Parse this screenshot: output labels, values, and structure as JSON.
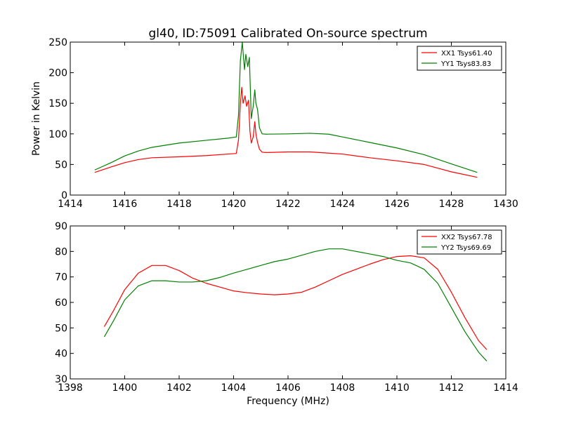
{
  "chart_data": [
    {
      "type": "line",
      "title": "gl40, ID:75091 Calibrated On-source spectrum",
      "xlabel": "",
      "ylabel": "Power in Kelvin",
      "xlim": [
        1414,
        1430
      ],
      "ylim": [
        0,
        250
      ],
      "xticks": [
        1414,
        1416,
        1418,
        1420,
        1422,
        1424,
        1426,
        1428,
        1430
      ],
      "yticks": [
        0,
        50,
        100,
        150,
        200,
        250
      ],
      "grid": false,
      "legend_position": "top-right",
      "series": [
        {
          "name": "XX1 Tsys61.40",
          "color": "#ff0000",
          "x": [
            1414.9,
            1415.5,
            1416.0,
            1416.5,
            1417.0,
            1418.0,
            1419.0,
            1419.8,
            1420.1,
            1420.18,
            1420.25,
            1420.3,
            1420.35,
            1420.42,
            1420.48,
            1420.55,
            1420.6,
            1420.65,
            1420.72,
            1420.78,
            1420.82,
            1420.88,
            1420.95,
            1421.05,
            1421.2,
            1422.0,
            1422.8,
            1423.5,
            1424.0,
            1425.0,
            1426.0,
            1427.0,
            1428.0,
            1428.95
          ],
          "y": [
            37,
            46,
            53,
            58,
            61,
            62.5,
            64.5,
            67,
            68,
            90,
            150,
            176,
            150,
            162,
            145,
            155,
            105,
            85,
            95,
            120,
            100,
            86,
            75,
            70,
            69.5,
            70.5,
            70.5,
            68.5,
            67,
            61,
            56,
            50,
            38,
            29
          ]
        },
        {
          "name": "YY1 Tsys83.83",
          "color": "#008000",
          "x": [
            1414.9,
            1415.5,
            1416.0,
            1416.5,
            1417.0,
            1418.0,
            1419.0,
            1419.8,
            1420.1,
            1420.18,
            1420.25,
            1420.32,
            1420.4,
            1420.45,
            1420.52,
            1420.58,
            1420.65,
            1420.72,
            1420.78,
            1420.82,
            1420.88,
            1420.95,
            1421.05,
            1421.2,
            1422.0,
            1422.8,
            1423.5,
            1424.0,
            1425.0,
            1426.0,
            1427.0,
            1428.0,
            1428.95
          ],
          "y": [
            41,
            53,
            64,
            72,
            78,
            85,
            89.5,
            93,
            95,
            130,
            220,
            250,
            205,
            230,
            210,
            225,
            125,
            145,
            172,
            150,
            140,
            110,
            100,
            99.5,
            100,
            101,
            99.5,
            95,
            86,
            77,
            66,
            51,
            37
          ]
        }
      ]
    },
    {
      "type": "line",
      "title": "",
      "xlabel": "Frequency (MHz)",
      "ylabel": "",
      "xlim": [
        1398,
        1414
      ],
      "ylim": [
        30,
        90
      ],
      "xticks": [
        1398,
        1400,
        1402,
        1404,
        1406,
        1408,
        1410,
        1412,
        1414
      ],
      "yticks": [
        30,
        40,
        50,
        60,
        70,
        80,
        90
      ],
      "grid": false,
      "legend_position": "top-right",
      "series": [
        {
          "name": "XX2 Tsys67.78",
          "color": "#ff0000",
          "x": [
            1399.25,
            1399.6,
            1400.0,
            1400.5,
            1401.0,
            1401.5,
            1402.0,
            1402.5,
            1403.0,
            1403.5,
            1404.0,
            1404.5,
            1405.0,
            1405.5,
            1406.0,
            1406.5,
            1407.0,
            1407.5,
            1408.0,
            1408.5,
            1409.0,
            1409.5,
            1410.0,
            1410.5,
            1411.0,
            1411.5,
            1412.0,
            1412.5,
            1413.0,
            1413.3
          ],
          "y": [
            50.5,
            57,
            65,
            71.5,
            74.5,
            74.5,
            72.5,
            69.5,
            67.5,
            66,
            64.5,
            63.8,
            63.3,
            63,
            63.3,
            64,
            66,
            68.5,
            71,
            73,
            75,
            76.8,
            78,
            78.3,
            77.5,
            73,
            64,
            54,
            45,
            41.5
          ]
        },
        {
          "name": "YY2 Tsys69.69",
          "color": "#008000",
          "x": [
            1399.25,
            1399.6,
            1400.0,
            1400.5,
            1401.0,
            1401.5,
            1402.0,
            1402.5,
            1403.0,
            1403.5,
            1404.0,
            1404.5,
            1405.0,
            1405.5,
            1406.0,
            1406.5,
            1407.0,
            1407.5,
            1408.0,
            1408.5,
            1409.0,
            1409.5,
            1410.0,
            1410.5,
            1411.0,
            1411.5,
            1412.0,
            1412.5,
            1413.0,
            1413.3
          ],
          "y": [
            46.5,
            53,
            61,
            66.5,
            68.5,
            68.5,
            68,
            68,
            68.5,
            69.8,
            71.5,
            73,
            74.5,
            76,
            77,
            78.5,
            80,
            81,
            81,
            80,
            79,
            78,
            76.5,
            75.5,
            73,
            67.5,
            58,
            48.5,
            40.5,
            37
          ]
        }
      ]
    }
  ]
}
